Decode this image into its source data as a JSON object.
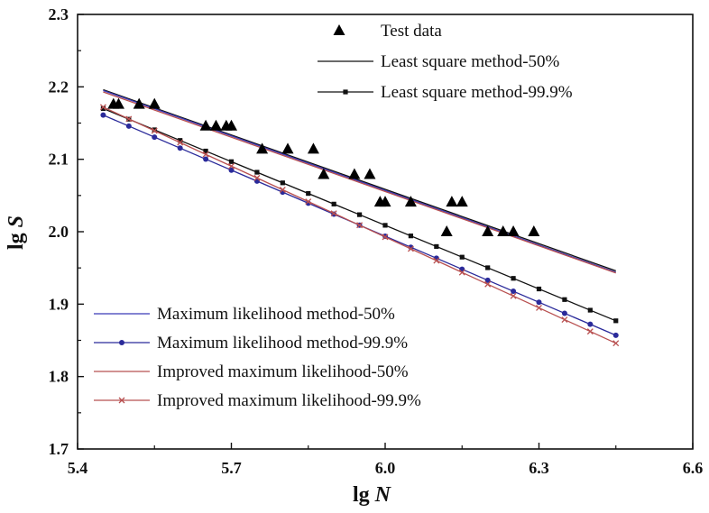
{
  "chart_data": {
    "type": "scatter",
    "title": "",
    "xlabel": {
      "main": "lg ",
      "italic": "N"
    },
    "ylabel": {
      "main": "lg ",
      "italic": "S"
    },
    "xlim": [
      5.4,
      6.6
    ],
    "ylim": [
      1.7,
      2.3
    ],
    "xticks": [
      "5.4",
      "5.7",
      "6.0",
      "6.3",
      "6.6"
    ],
    "yticks": [
      "1.7",
      "1.8",
      "1.9",
      "2.0",
      "2.1",
      "2.2",
      "2.3"
    ],
    "grid": false,
    "series": [
      {
        "name": "Test data",
        "kind": "points",
        "marker": "triangle",
        "color": "#000000",
        "points": [
          [
            5.47,
            2.176
          ],
          [
            5.48,
            2.176
          ],
          [
            5.52,
            2.176
          ],
          [
            5.55,
            2.176
          ],
          [
            5.65,
            2.146
          ],
          [
            5.67,
            2.146
          ],
          [
            5.69,
            2.146
          ],
          [
            5.7,
            2.146
          ],
          [
            5.76,
            2.114
          ],
          [
            5.81,
            2.114
          ],
          [
            5.86,
            2.114
          ],
          [
            5.88,
            2.079
          ],
          [
            5.94,
            2.079
          ],
          [
            5.97,
            2.079
          ],
          [
            5.99,
            2.041
          ],
          [
            6.0,
            2.041
          ],
          [
            6.05,
            2.041
          ],
          [
            6.12,
            2.0
          ],
          [
            6.13,
            2.041
          ],
          [
            6.15,
            2.041
          ],
          [
            6.2,
            2.0
          ],
          [
            6.23,
            2.0
          ],
          [
            6.25,
            2.0
          ],
          [
            6.29,
            2.0
          ]
        ]
      },
      {
        "name": "Least square method-50%",
        "kind": "line",
        "color": "#111111",
        "marker": "none",
        "x": [
          5.45,
          6.45
        ],
        "y": [
          2.196,
          1.946
        ]
      },
      {
        "name": "Least square method-99.9%",
        "kind": "line",
        "color": "#111111",
        "marker": "square",
        "x": [
          5.45,
          6.45
        ],
        "y": [
          2.17,
          1.877
        ]
      },
      {
        "name": "Maximum likelihood method-50%",
        "kind": "line",
        "color": "#3a3ab8",
        "marker": "none",
        "x": [
          5.45,
          6.45
        ],
        "y": [
          2.195,
          1.944
        ]
      },
      {
        "name": "Maximum likelihood method-99.9%",
        "kind": "line",
        "color": "#2a2a9a",
        "marker": "circle",
        "x": [
          5.45,
          6.45
        ],
        "y": [
          2.161,
          1.857
        ]
      },
      {
        "name": "Improved maximum likelihood-50%",
        "kind": "line",
        "color": "#b85050",
        "marker": "none",
        "x": [
          5.45,
          6.45
        ],
        "y": [
          2.193,
          1.943
        ]
      },
      {
        "name": "Improved maximum likelihood-99.9%",
        "kind": "line",
        "color": "#b85050",
        "marker": "cross",
        "x": [
          5.45,
          6.45
        ],
        "y": [
          2.172,
          1.846
        ]
      }
    ],
    "legends": [
      {
        "placement": "top-center",
        "series": [
          0,
          1,
          2
        ]
      },
      {
        "placement": "bottom-left",
        "series": [
          3,
          4,
          5,
          6
        ]
      }
    ]
  }
}
